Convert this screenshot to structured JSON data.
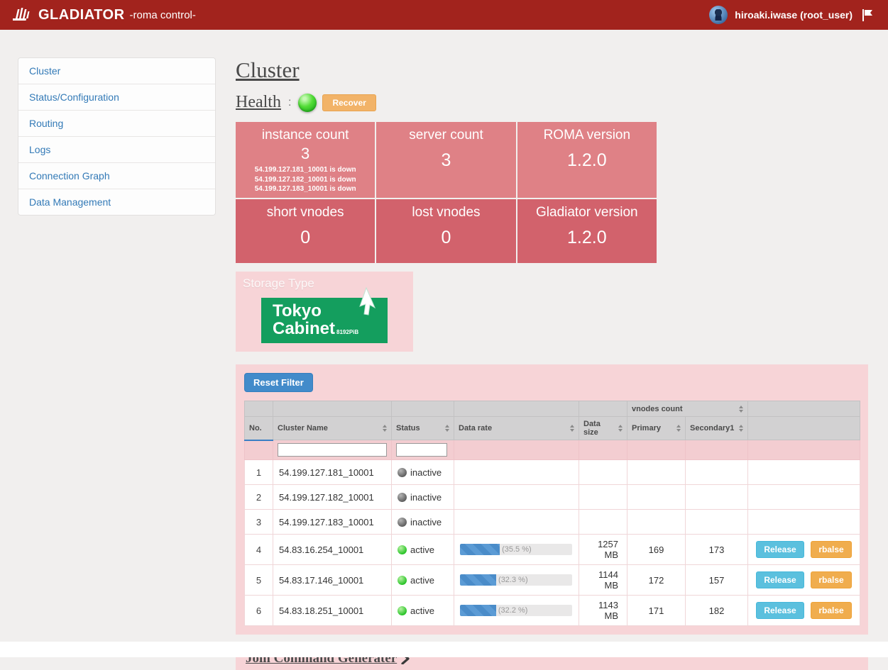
{
  "colors": {
    "header_red": "#a2231d",
    "card_light": "#df8186",
    "card_dark": "#d2626c",
    "panel_pink": "#f7d4d7",
    "primary_blue": "#428bca",
    "info_cyan": "#5bc0de",
    "warning_orange": "#f0ad4e",
    "tokyo_green": "#149e5e",
    "health_green": "#2ecc2e"
  },
  "header": {
    "brand": "GLADIATOR",
    "subtitle": "-roma control-",
    "user": "hiroaki.iwase (root_user)"
  },
  "sidebar": {
    "items": [
      {
        "label": "Cluster"
      },
      {
        "label": "Status/Configuration"
      },
      {
        "label": "Routing"
      },
      {
        "label": "Logs"
      },
      {
        "label": "Connection Graph"
      },
      {
        "label": "Data Management"
      }
    ]
  },
  "main": {
    "title": "Cluster",
    "health": {
      "label": "Health",
      "colon": ":",
      "recover_label": "Recover"
    },
    "stats": [
      {
        "label": "instance count",
        "value": "3",
        "notes": [
          "54.199.127.181_10001 is down",
          "54.199.127.182_10001 is down",
          "54.199.127.183_10001 is down"
        ]
      },
      {
        "label": "server count",
        "value": "3"
      },
      {
        "label": "ROMA version",
        "value": "1.2.0"
      },
      {
        "label": "short vnodes",
        "value": "0"
      },
      {
        "label": "lost vnodes",
        "value": "0"
      },
      {
        "label": "Gladiator version",
        "value": "1.2.0"
      }
    ],
    "storage": {
      "label": "Storage Type",
      "logo_line1": "Tokyo",
      "logo_line2": "Cabinet",
      "logo_sub": "8192PiB"
    },
    "table": {
      "reset_filter_label": "Reset Filter",
      "vnodes_group_label": "vnodes count",
      "columns": {
        "no": "No.",
        "name": "Cluster Name",
        "status": "Status",
        "rate": "Data rate",
        "size": "Data size",
        "primary": "Primary",
        "secondary": "Secondary1"
      },
      "release_label": "Release",
      "rbalse_label": "rbalse",
      "rows": [
        {
          "no": "1",
          "name": "54.199.127.181_10001",
          "status": "inactive"
        },
        {
          "no": "2",
          "name": "54.199.127.182_10001",
          "status": "inactive"
        },
        {
          "no": "3",
          "name": "54.199.127.183_10001",
          "status": "inactive"
        },
        {
          "no": "4",
          "name": "54.83.16.254_10001",
          "status": "active",
          "rate_pct": 35.5,
          "rate_label": "(35.5 %)",
          "size": "1257 MB",
          "primary": "169",
          "secondary": "173"
        },
        {
          "no": "5",
          "name": "54.83.17.146_10001",
          "status": "active",
          "rate_pct": 32.3,
          "rate_label": "(32.3 %)",
          "size": "1144 MB",
          "primary": "172",
          "secondary": "157"
        },
        {
          "no": "6",
          "name": "54.83.18.251_10001",
          "status": "active",
          "rate_pct": 32.2,
          "rate_label": "(32.2 %)",
          "size": "1143 MB",
          "primary": "171",
          "secondary": "182"
        }
      ]
    },
    "join_link": "Join Command Generater"
  }
}
